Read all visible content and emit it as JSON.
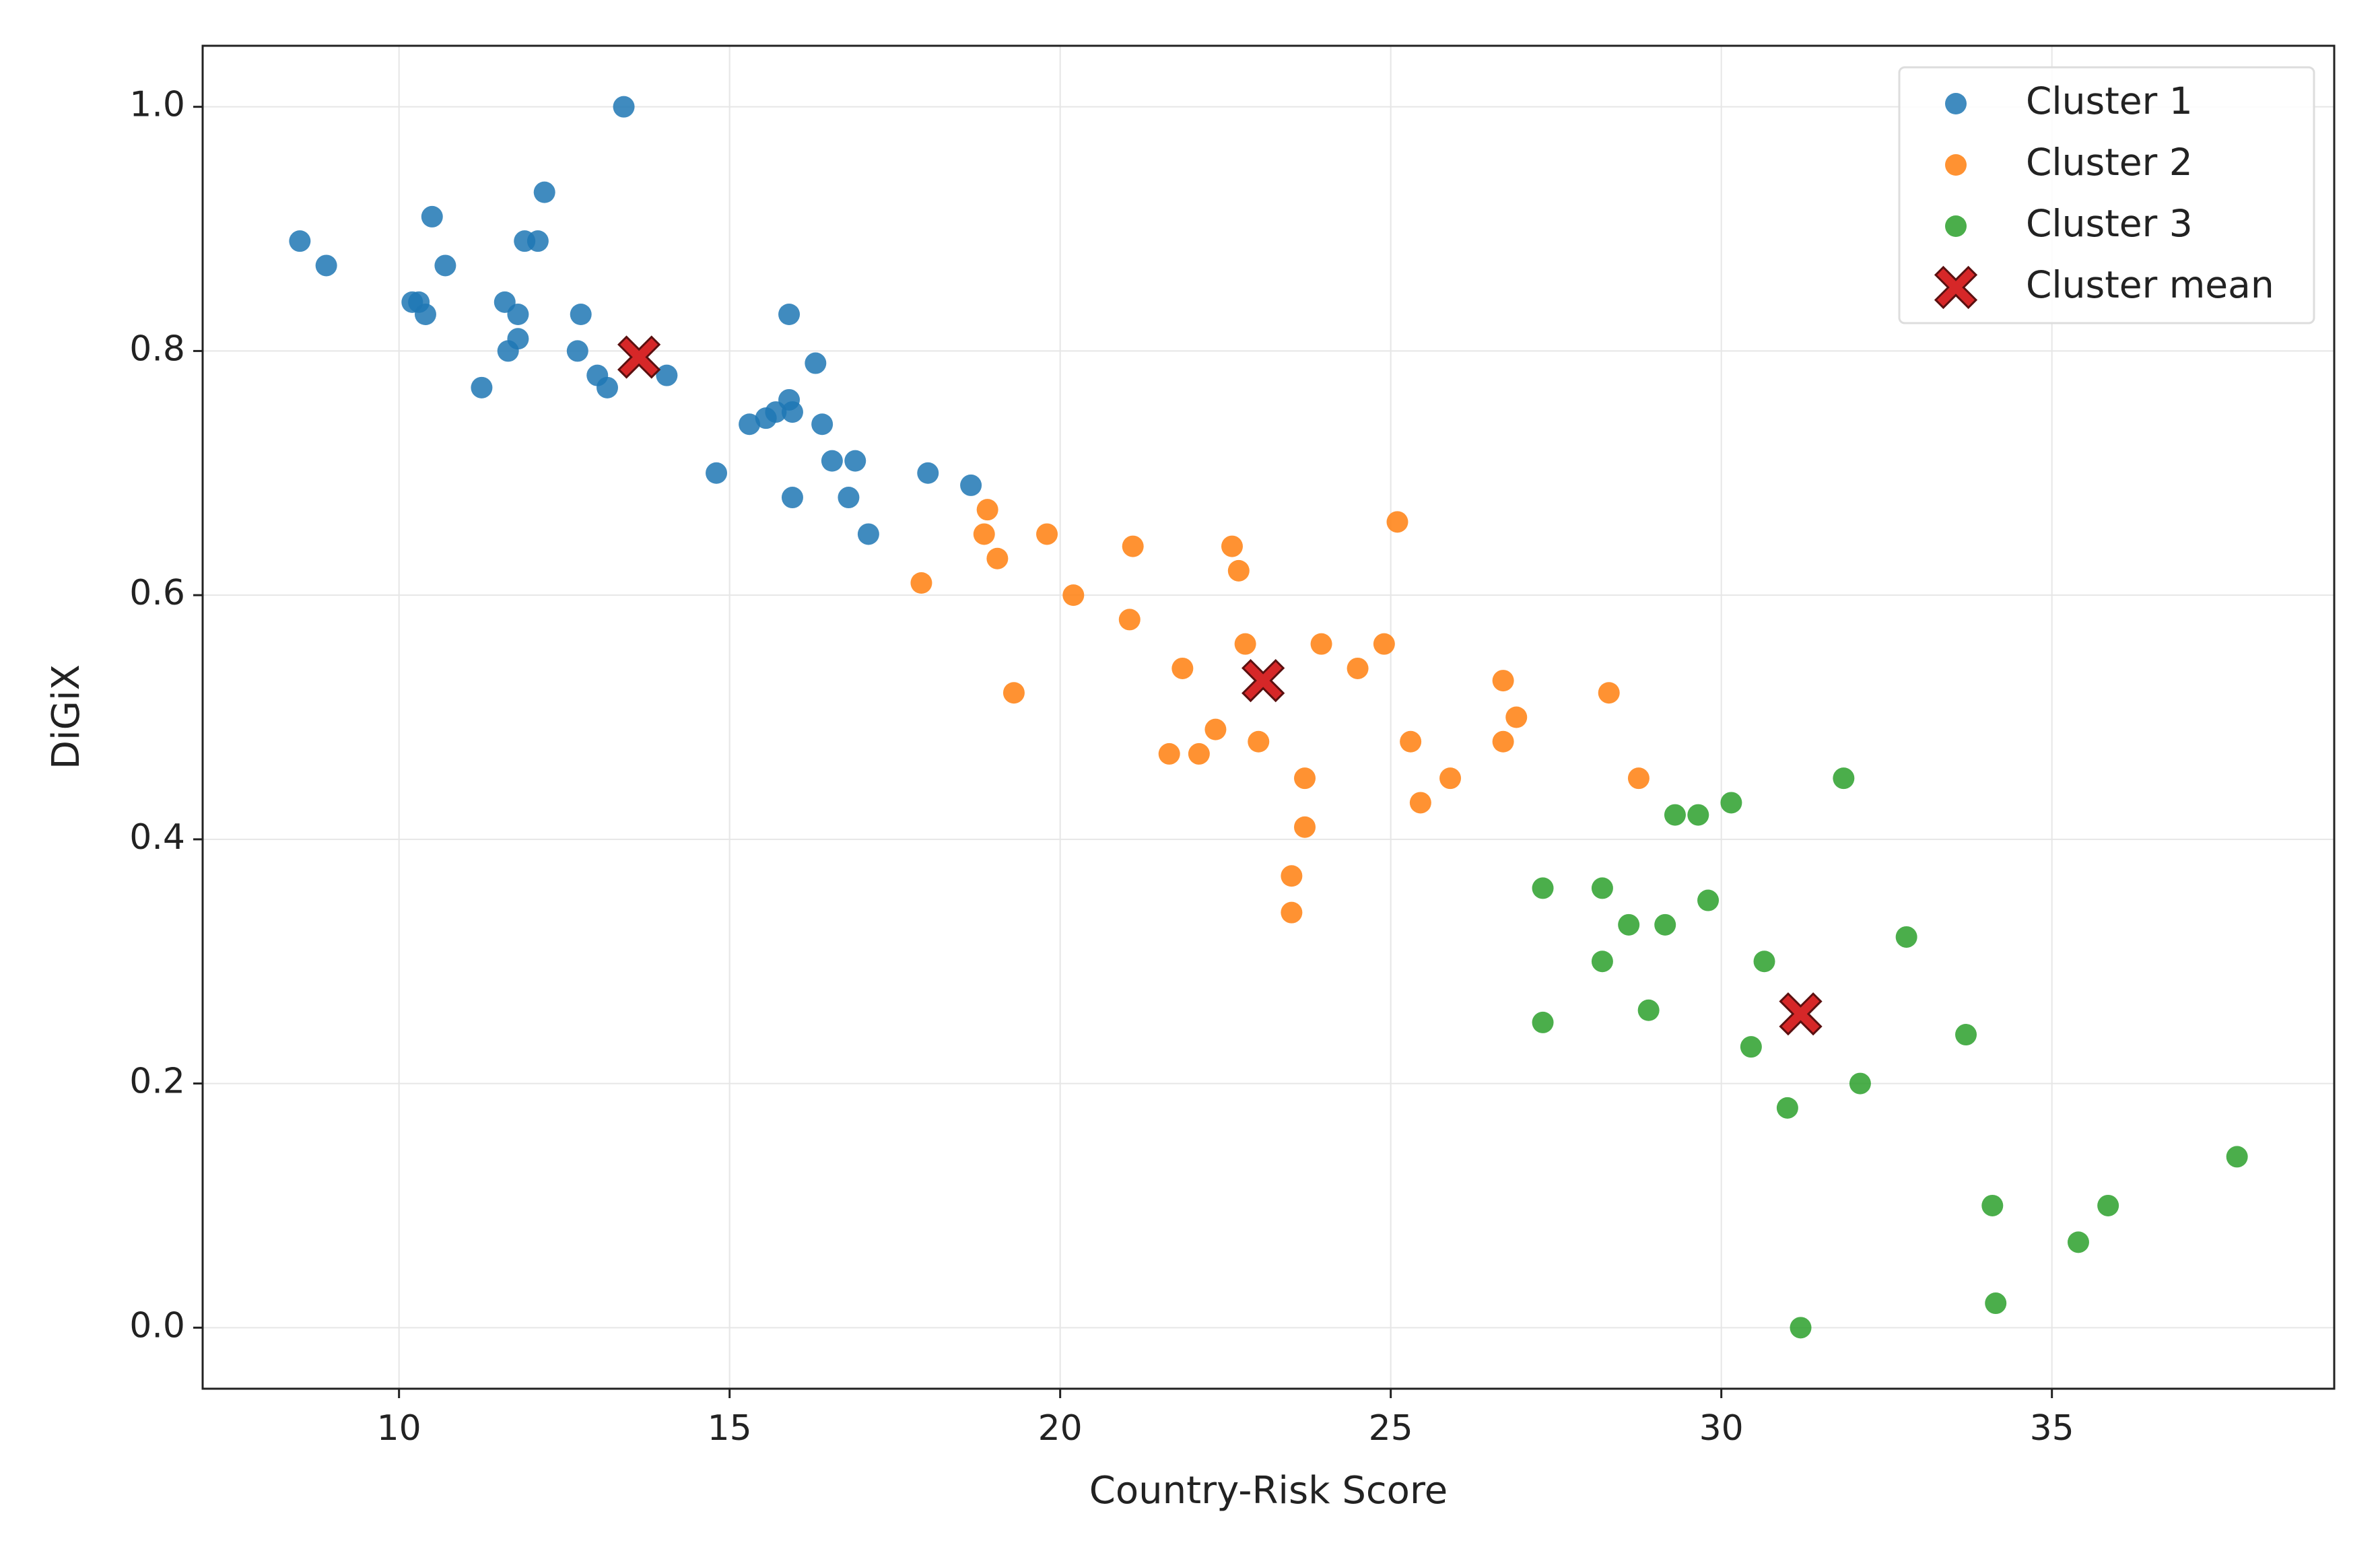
{
  "chart_data": {
    "type": "scatter",
    "xlabel": "Country-Risk Score",
    "ylabel": "DiGiX",
    "xlim": [
      7.03,
      39.27
    ],
    "ylim": [
      -0.05,
      1.05
    ],
    "xticks": [
      10,
      15,
      20,
      25,
      30,
      35
    ],
    "yticks": [
      {
        "value": 0,
        "label": "0.0"
      },
      0.2,
      0.4,
      0.6,
      0.8,
      {
        "value": 1,
        "label": "1.0"
      }
    ],
    "grid": true,
    "legend": "upper right",
    "series": [
      {
        "name": "Cluster 1",
        "color": "#1f77b4",
        "marker": "o",
        "x": [
          8.5,
          8.9,
          10.2,
          10.3,
          10.4,
          10.5,
          10.7,
          11.25,
          11.6,
          11.65,
          11.8,
          11.8,
          11.9,
          12.1,
          12.2,
          12.75,
          12.7,
          13.0,
          13.15,
          13.4,
          14.05,
          14.8,
          15.3,
          15.55,
          15.7,
          15.9,
          15.95,
          15.9,
          15.95,
          16.3,
          16.4,
          16.55,
          16.9,
          16.8,
          17.1,
          18.0,
          18.65
        ],
        "values": [
          0.89,
          0.87,
          0.84,
          0.84,
          0.83,
          0.91,
          0.87,
          0.77,
          0.84,
          0.8,
          0.83,
          0.81,
          0.89,
          0.89,
          0.93,
          0.83,
          0.8,
          0.78,
          0.77,
          1.0,
          0.78,
          0.7,
          0.74,
          0.745,
          0.75,
          0.76,
          0.75,
          0.83,
          0.68,
          0.79,
          0.74,
          0.71,
          0.71,
          0.68,
          0.65,
          0.7,
          0.69
        ]
      },
      {
        "name": "Cluster 2",
        "color": "#ff7f0e",
        "marker": "o",
        "x": [
          17.9,
          18.9,
          18.85,
          19.05,
          19.3,
          19.8,
          20.2,
          21.05,
          21.1,
          21.85,
          21.65,
          22.1,
          22.35,
          22.6,
          22.7,
          22.8,
          23.0,
          23.5,
          23.5,
          23.7,
          23.7,
          23.95,
          24.5,
          24.9,
          25.1,
          25.3,
          25.45,
          25.9,
          26.7,
          26.9,
          26.7,
          28.3,
          28.75
        ],
        "values": [
          0.61,
          0.67,
          0.65,
          0.63,
          0.52,
          0.65,
          0.6,
          0.58,
          0.64,
          0.54,
          0.47,
          0.47,
          0.49,
          0.64,
          0.62,
          0.56,
          0.48,
          0.37,
          0.34,
          0.45,
          0.41,
          0.56,
          0.54,
          0.56,
          0.66,
          0.48,
          0.43,
          0.45,
          0.53,
          0.5,
          0.48,
          0.52,
          0.45
        ]
      },
      {
        "name": "Cluster 3",
        "color": "#2ca02c",
        "marker": "o",
        "x": [
          27.3,
          27.3,
          28.2,
          28.2,
          28.6,
          28.9,
          29.15,
          29.3,
          29.65,
          29.8,
          30.15,
          30.45,
          30.65,
          31.0,
          31.2,
          31.85,
          32.1,
          32.8,
          33.7,
          34.1,
          34.15,
          35.4,
          35.85,
          37.8
        ],
        "values": [
          0.36,
          0.25,
          0.36,
          0.3,
          0.33,
          0.26,
          0.33,
          0.42,
          0.42,
          0.35,
          0.43,
          0.23,
          0.3,
          0.18,
          0.0,
          0.45,
          0.2,
          0.32,
          0.24,
          0.1,
          0.02,
          0.07,
          0.1,
          0.14
        ]
      },
      {
        "name": "Cluster mean",
        "color": "#d62728",
        "marker": "X",
        "x": [
          13.63,
          23.07,
          31.2
        ],
        "values": [
          0.795,
          0.53,
          0.257
        ]
      }
    ]
  }
}
